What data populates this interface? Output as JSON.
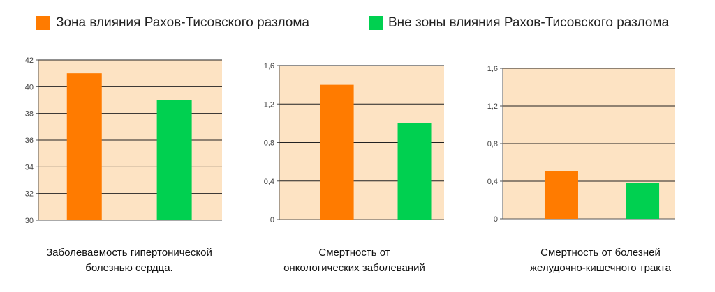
{
  "legend": [
    {
      "label": "Зона влияния Рахов-Тисовского разлома",
      "color": "#ff7b00"
    },
    {
      "label": "Вне зоны влияния Рахов-Тисовского разлома",
      "color": "#00d050"
    }
  ],
  "colors": {
    "plot_bg": "#fde3c3",
    "grid": "#222222",
    "axis": "#555555"
  },
  "chart_data": [
    {
      "type": "bar",
      "title": "Заболеваемость гипертонической болезнью сердца.",
      "title_lines": [
        "Заболеваемость гипертонической",
        "болезнью сердца."
      ],
      "categories": [
        "Зона влияния Рахов-Тисовского разлома",
        "Вне зоны влияния Рахов-Тисовского разлома"
      ],
      "values": [
        41,
        39
      ],
      "ylim": [
        30,
        42
      ],
      "yticks": [
        30,
        32,
        34,
        36,
        38,
        40,
        42
      ],
      "ytick_labels": [
        "30",
        "32",
        "34",
        "36",
        "38",
        "40",
        "42"
      ],
      "grid": true,
      "legend": "top"
    },
    {
      "type": "bar",
      "title": "Смертность от онкологических заболеваний",
      "title_lines": [
        "Смертность от",
        "онкологических заболеваний"
      ],
      "categories": [
        "Зона влияния Рахов-Тисовского разлома",
        "Вне зоны влияния Рахов-Тисовского разлома"
      ],
      "values": [
        1.4,
        1.0
      ],
      "ylim": [
        0,
        1.6
      ],
      "yticks": [
        0,
        0.4,
        0.8,
        1.2,
        1.6
      ],
      "ytick_labels": [
        "0",
        "0,4",
        "0,8",
        "1,2",
        "1,6"
      ],
      "grid": true,
      "legend": "top"
    },
    {
      "type": "bar",
      "title": "Смертность от болезней желудочно-кишечного тракта",
      "title_lines": [
        "Смертность от болезней",
        "желудочно-кишечного тракта"
      ],
      "categories": [
        "Зона влияния Рахов-Тисовского разлома",
        "Вне зоны влияния Рахов-Тисовского разлома"
      ],
      "values": [
        0.51,
        0.38
      ],
      "ylim": [
        0,
        1.6
      ],
      "yticks": [
        0,
        0.4,
        0.8,
        1.2,
        1.6
      ],
      "ytick_labels": [
        "0",
        "0,4",
        "0,8",
        "1,2",
        "1,6"
      ],
      "grid": true,
      "legend": "top"
    }
  ]
}
